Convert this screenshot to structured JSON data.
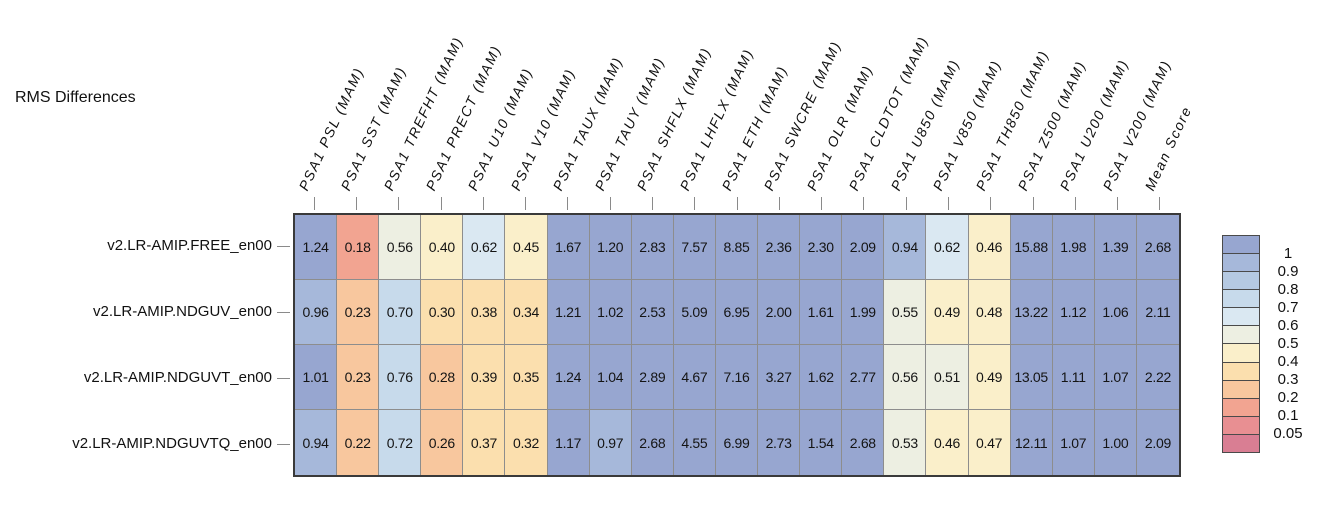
{
  "chart_data": {
    "type": "heatmap",
    "title": "RMS Differences",
    "legend_position": "right",
    "columns": [
      "PSA1 PSL (MAM)",
      "PSA1 SST (MAM)",
      "PSA1 TREFHT (MAM)",
      "PSA1 PRECT (MAM)",
      "PSA1 U10 (MAM)",
      "PSA1 V10 (MAM)",
      "PSA1 TAUX (MAM)",
      "PSA1 TAUY (MAM)",
      "PSA1 SHFLX (MAM)",
      "PSA1 LHFLX (MAM)",
      "PSA1 ETH (MAM)",
      "PSA1 SWCRE (MAM)",
      "PSA1 OLR (MAM)",
      "PSA1 CLDTOT (MAM)",
      "PSA1 U850 (MAM)",
      "PSA1 V850 (MAM)",
      "PSA1 TH850 (MAM)",
      "PSA1 Z500 (MAM)",
      "PSA1 U200 (MAM)",
      "PSA1 V200 (MAM)",
      "Mean Score"
    ],
    "rows": [
      "v2.LR-AMIP.FREE_en00",
      "v2.LR-AMIP.NDGUV_en00",
      "v2.LR-AMIP.NDGUVT_en00",
      "v2.LR-AMIP.NDGUVTQ_en00"
    ],
    "values": [
      [
        1.24,
        0.18,
        0.56,
        0.4,
        0.62,
        0.45,
        1.67,
        1.2,
        2.83,
        7.57,
        8.85,
        2.36,
        2.3,
        2.09,
        0.94,
        0.62,
        0.46,
        15.88,
        1.98,
        1.39,
        2.68
      ],
      [
        0.96,
        0.23,
        0.7,
        0.3,
        0.38,
        0.34,
        1.21,
        1.02,
        2.53,
        5.09,
        6.95,
        2.0,
        1.61,
        1.99,
        0.55,
        0.49,
        0.48,
        13.22,
        1.12,
        1.06,
        2.11
      ],
      [
        1.01,
        0.23,
        0.76,
        0.28,
        0.39,
        0.35,
        1.24,
        1.04,
        2.89,
        4.67,
        7.16,
        3.27,
        1.62,
        2.77,
        0.56,
        0.51,
        0.49,
        13.05,
        1.11,
        1.07,
        2.22
      ],
      [
        0.94,
        0.22,
        0.72,
        0.26,
        0.37,
        0.32,
        1.17,
        0.97,
        2.68,
        4.55,
        6.99,
        2.73,
        1.54,
        2.68,
        0.53,
        0.46,
        0.47,
        12.11,
        1.07,
        1.0,
        2.09
      ]
    ],
    "value_format_decimals": 2,
    "colorbar": {
      "tick_labels": [
        "1",
        "0.9",
        "0.8",
        "0.7",
        "0.6",
        "0.5",
        "0.4",
        "0.3",
        "0.2",
        "0.1",
        "0.05"
      ],
      "thresholds_descending": [
        1,
        0.9,
        0.8,
        0.7,
        0.6,
        0.5,
        0.4,
        0.3,
        0.2,
        0.1,
        0.05
      ],
      "band_colors_top_to_bottom": [
        "#97a6d0",
        "#a6b8da",
        "#b5c9e2",
        "#c7daeb",
        "#dae8f2",
        "#edefe2",
        "#faefca",
        "#fbdfae",
        "#f8c79e",
        "#f2a491",
        "#e88f92",
        "#d97e93"
      ]
    }
  }
}
